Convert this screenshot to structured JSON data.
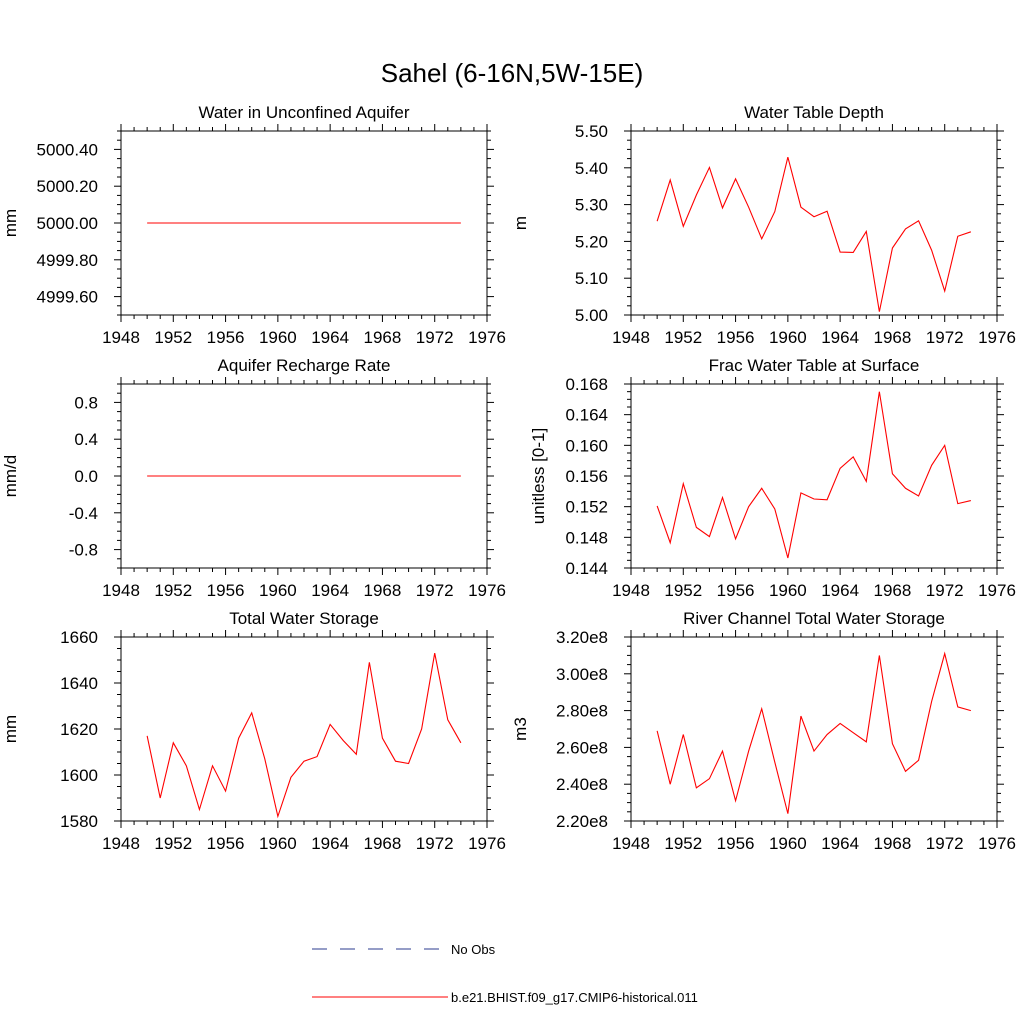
{
  "figure": {
    "title": "Sahel (6-16N,5W-15E)"
  },
  "legend": {
    "placement": "bottom-center",
    "entries": [
      {
        "label": "No Obs",
        "color": "#2B3B8F",
        "style": "dashed"
      },
      {
        "label": "b.e21.BHIST.f09_g17.CMIP6-historical.011",
        "color": "#FF0000",
        "style": "solid"
      }
    ]
  },
  "chart_data": [
    {
      "type": "line",
      "title": "Water in Unconfined Aquifer",
      "ylabel": "mm",
      "xlim": [
        1948,
        1976
      ],
      "xticks": [
        "1948",
        "1952",
        "1956",
        "1960",
        "1964",
        "1968",
        "1972",
        "1976"
      ],
      "ylim": [
        4999.5,
        5000.5
      ],
      "yticks": [
        "4999.60",
        "4999.80",
        "5000.00",
        "5000.20",
        "5000.40"
      ],
      "ytick_values": [
        4999.6,
        4999.8,
        5000.0,
        5000.2,
        5000.4
      ],
      "x": [
        1950,
        1951,
        1952,
        1953,
        1954,
        1955,
        1956,
        1957,
        1958,
        1959,
        1960,
        1961,
        1962,
        1963,
        1964,
        1965,
        1966,
        1967,
        1968,
        1969,
        1970,
        1971,
        1972,
        1973,
        1974
      ],
      "series": [
        {
          "values": [
            5000.0,
            5000.0,
            5000.0,
            5000.0,
            5000.0,
            5000.0,
            5000.0,
            5000.0,
            5000.0,
            5000.0,
            5000.0,
            5000.0,
            5000.0,
            5000.0,
            5000.0,
            5000.0,
            5000.0,
            5000.0,
            5000.0,
            5000.0,
            5000.0,
            5000.0,
            5000.0,
            5000.0,
            5000.0
          ],
          "color": "#FF0000"
        }
      ],
      "grid": false
    },
    {
      "type": "line",
      "title": "Water Table Depth",
      "ylabel": "m",
      "xlim": [
        1948,
        1976
      ],
      "xticks": [
        "1948",
        "1952",
        "1956",
        "1960",
        "1964",
        "1968",
        "1972",
        "1976"
      ],
      "ylim": [
        5.0,
        5.5
      ],
      "yticks": [
        "5.00",
        "5.10",
        "5.20",
        "5.30",
        "5.40",
        "5.50"
      ],
      "ytick_values": [
        5.0,
        5.1,
        5.2,
        5.3,
        5.4,
        5.5
      ],
      "x": [
        1950,
        1951,
        1952,
        1953,
        1954,
        1955,
        1956,
        1957,
        1958,
        1959,
        1960,
        1961,
        1962,
        1963,
        1964,
        1965,
        1966,
        1967,
        1968,
        1969,
        1970,
        1971,
        1972,
        1973,
        1974
      ],
      "series": [
        {
          "values": [
            5.255,
            5.367,
            5.241,
            5.326,
            5.401,
            5.291,
            5.37,
            5.293,
            5.207,
            5.281,
            5.429,
            5.293,
            5.267,
            5.282,
            5.171,
            5.17,
            5.227,
            5.009,
            5.182,
            5.234,
            5.256,
            5.176,
            5.065,
            5.214,
            5.226
          ],
          "color": "#FF0000"
        }
      ],
      "grid": false
    },
    {
      "type": "line",
      "title": "Aquifer Recharge Rate",
      "ylabel": "mm/d",
      "xlim": [
        1948,
        1976
      ],
      "xticks": [
        "1948",
        "1952",
        "1956",
        "1960",
        "1964",
        "1968",
        "1972",
        "1976"
      ],
      "ylim": [
        -1.0,
        1.0
      ],
      "yticks": [
        "-0.8",
        "-0.4",
        "0.0",
        "0.4",
        "0.8"
      ],
      "ytick_values": [
        -0.8,
        -0.4,
        0.0,
        0.4,
        0.8
      ],
      "x": [
        1950,
        1951,
        1952,
        1953,
        1954,
        1955,
        1956,
        1957,
        1958,
        1959,
        1960,
        1961,
        1962,
        1963,
        1964,
        1965,
        1966,
        1967,
        1968,
        1969,
        1970,
        1971,
        1972,
        1973,
        1974
      ],
      "series": [
        {
          "values": [
            0,
            0,
            0,
            0,
            0,
            0,
            0,
            0,
            0,
            0,
            0,
            0,
            0,
            0,
            0,
            0,
            0,
            0,
            0,
            0,
            0,
            0,
            0,
            0,
            0
          ],
          "color": "#FF0000"
        }
      ],
      "grid": false
    },
    {
      "type": "line",
      "title": "Frac Water Table at Surface",
      "ylabel": "unitless [0-1]",
      "xlim": [
        1948,
        1976
      ],
      "xticks": [
        "1948",
        "1952",
        "1956",
        "1960",
        "1964",
        "1968",
        "1972",
        "1976"
      ],
      "ylim": [
        0.144,
        0.168
      ],
      "yticks": [
        "0.144",
        "0.148",
        "0.152",
        "0.156",
        "0.160",
        "0.164",
        "0.168"
      ],
      "ytick_values": [
        0.144,
        0.148,
        0.152,
        0.156,
        0.16,
        0.164,
        0.168
      ],
      "x": [
        1950,
        1951,
        1952,
        1953,
        1954,
        1955,
        1956,
        1957,
        1958,
        1959,
        1960,
        1961,
        1962,
        1963,
        1964,
        1965,
        1966,
        1967,
        1968,
        1969,
        1970,
        1971,
        1972,
        1973,
        1974
      ],
      "series": [
        {
          "values": [
            0.1521,
            0.1473,
            0.155,
            0.1493,
            0.1481,
            0.1532,
            0.1478,
            0.152,
            0.1544,
            0.1517,
            0.1453,
            0.1538,
            0.153,
            0.1529,
            0.157,
            0.1585,
            0.1553,
            0.167,
            0.1563,
            0.1544,
            0.1534,
            0.1574,
            0.16,
            0.1524,
            0.1528
          ],
          "color": "#FF0000"
        }
      ],
      "grid": false
    },
    {
      "type": "line",
      "title": "Total Water Storage",
      "ylabel": "mm",
      "xlim": [
        1948,
        1976
      ],
      "xticks": [
        "1948",
        "1952",
        "1956",
        "1960",
        "1964",
        "1968",
        "1972",
        "1976"
      ],
      "ylim": [
        1580,
        1660
      ],
      "yticks": [
        "1580",
        "1600",
        "1620",
        "1640",
        "1660"
      ],
      "ytick_values": [
        1580,
        1600,
        1620,
        1640,
        1660
      ],
      "x": [
        1950,
        1951,
        1952,
        1953,
        1954,
        1955,
        1956,
        1957,
        1958,
        1959,
        1960,
        1961,
        1962,
        1963,
        1964,
        1965,
        1966,
        1967,
        1968,
        1969,
        1970,
        1971,
        1972,
        1973,
        1974
      ],
      "series": [
        {
          "values": [
            1617,
            1590,
            1614,
            1604,
            1585,
            1604,
            1593,
            1616,
            1627,
            1607,
            1582,
            1599,
            1606,
            1608,
            1622,
            1615,
            1609,
            1649,
            1616,
            1606,
            1605,
            1620,
            1653,
            1624,
            1614
          ],
          "color": "#FF0000"
        }
      ],
      "grid": false
    },
    {
      "type": "line",
      "title": "River Channel Total Water Storage",
      "ylabel": "m3",
      "xlim": [
        1948,
        1976
      ],
      "xticks": [
        "1948",
        "1952",
        "1956",
        "1960",
        "1964",
        "1968",
        "1972",
        "1976"
      ],
      "ylim": [
        220000000,
        320000000
      ],
      "yticks": [
        "2.20e8",
        "2.40e8",
        "2.60e8",
        "2.80e8",
        "3.00e8",
        "3.20e8"
      ],
      "ytick_values": [
        220000000,
        240000000,
        260000000,
        280000000,
        300000000,
        320000000
      ],
      "x": [
        1950,
        1951,
        1952,
        1953,
        1954,
        1955,
        1956,
        1957,
        1958,
        1959,
        1960,
        1961,
        1962,
        1963,
        1964,
        1965,
        1966,
        1967,
        1968,
        1969,
        1970,
        1971,
        1972,
        1973,
        1974
      ],
      "series": [
        {
          "values": [
            269000000,
            240000000,
            267000000,
            238000000,
            243000000,
            258000000,
            231000000,
            258000000,
            281000000,
            252000000,
            224000000,
            277000000,
            258000000,
            267000000,
            273000000,
            268000000,
            263000000,
            310000000,
            262000000,
            247000000,
            253000000,
            285000000,
            311000000,
            282000000,
            280000000
          ],
          "color": "#FF0000"
        }
      ],
      "grid": false
    }
  ]
}
